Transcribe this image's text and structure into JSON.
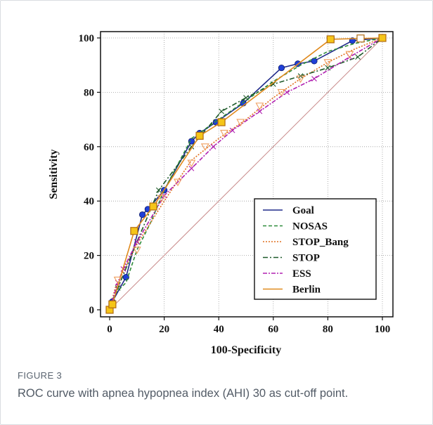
{
  "figure": {
    "label": "FIGURE 3",
    "caption": "ROC curve with apnea hypopnea index (AHI) 30 as cut-off point."
  },
  "chart_data": {
    "type": "line",
    "title": "",
    "xlabel": "100-Specificity",
    "ylabel": "Sensitivity",
    "xlim": [
      0,
      100
    ],
    "ylim": [
      0,
      100
    ],
    "xticks": [
      0,
      20,
      40,
      60,
      80,
      100
    ],
    "yticks": [
      0,
      20,
      40,
      60,
      80,
      100
    ],
    "grid": true,
    "legend": "bottom-right",
    "reference_line": {
      "from": [
        0,
        0
      ],
      "to": [
        100,
        100
      ],
      "color": "#c88a8a"
    },
    "series": [
      {
        "name": "Goal",
        "color": "#1f2a8a",
        "dash": "",
        "marker": "circle",
        "x": [
          0,
          1,
          6,
          12,
          14,
          20,
          30,
          33,
          39,
          49,
          63,
          69,
          75,
          89,
          100
        ],
        "y": [
          0,
          3,
          12,
          35,
          37,
          44,
          62,
          65,
          69,
          76,
          89,
          90.5,
          91.5,
          99,
          100
        ]
      },
      {
        "name": "NOSAS",
        "color": "#2e8b3a",
        "dash": "5,3",
        "marker": "none",
        "x": [
          0,
          2,
          6,
          10,
          15,
          20,
          30,
          40,
          50,
          60,
          70,
          80,
          90,
          100
        ],
        "y": [
          0,
          6,
          10,
          22,
          32,
          44,
          63,
          70,
          77,
          84,
          90,
          95,
          98,
          100
        ]
      },
      {
        "name": "STOP_Bang",
        "color": "#e07020",
        "dash": "2,2",
        "marker": "none",
        "x": [
          0,
          2,
          5,
          10,
          15,
          20,
          30,
          40,
          50,
          60,
          70,
          80,
          90,
          100
        ],
        "y": [
          0,
          8,
          14,
          24,
          32,
          40,
          55,
          63,
          70,
          78,
          85,
          91,
          96,
          100
        ]
      },
      {
        "name": "STOP",
        "color": "#1e5a2a",
        "dash": "7,3,2,3",
        "marker": "x",
        "x": [
          0,
          3,
          10,
          18,
          30,
          41,
          50,
          60,
          70,
          80,
          91,
          100
        ],
        "y": [
          0,
          8,
          25,
          44,
          60,
          73,
          78,
          83,
          86,
          89,
          93,
          100
        ]
      },
      {
        "name": "ESS",
        "color": "#b020b0",
        "dash": "6,2,2,2",
        "marker": "x",
        "x": [
          0,
          3,
          5,
          10,
          20,
          30,
          38,
          45,
          55,
          65,
          75,
          88,
          100
        ],
        "y": [
          0,
          10,
          15,
          25,
          42,
          52,
          60,
          66,
          73,
          80,
          85,
          93,
          100
        ]
      },
      {
        "name": "Berlin",
        "color": "#e08a1e",
        "dash": "",
        "marker": "square",
        "x": [
          0,
          1,
          9,
          16,
          33,
          41,
          81,
          92,
          100
        ],
        "y": [
          0,
          2,
          29,
          38,
          64,
          69,
          99.5,
          99.8,
          100
        ]
      }
    ],
    "triangle_markers": {
      "color": "#f0a060",
      "x": [
        3,
        10,
        19,
        25,
        30,
        35,
        42,
        48,
        55,
        63,
        70,
        80,
        88
      ],
      "y": [
        11,
        22,
        41,
        47,
        54,
        60,
        65,
        69,
        75,
        80,
        85,
        91,
        94
      ]
    }
  }
}
